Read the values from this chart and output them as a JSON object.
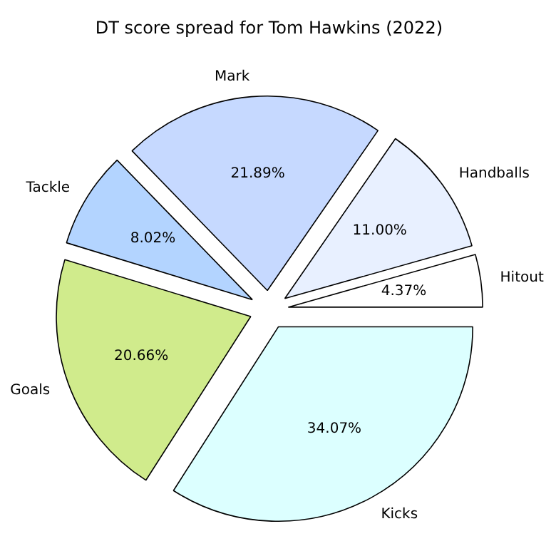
{
  "chart_data": {
    "type": "pie",
    "title": "DT score spread for Tom Hawkins (2022)",
    "categories": [
      "Hitout",
      "Handballs",
      "Mark",
      "Tackle",
      "Goals",
      "Kicks"
    ],
    "values": [
      4.37,
      11.0,
      21.89,
      8.02,
      20.66,
      34.07
    ],
    "value_labels": [
      "4.37%",
      "11.00%",
      "21.89%",
      "8.02%",
      "20.66%",
      "34.07%"
    ],
    "colors": [
      "#ffffff",
      "#e8f0ff",
      "#c6d9ff",
      "#b3d4ff",
      "#d0eb8c",
      "#dcffff"
    ]
  }
}
